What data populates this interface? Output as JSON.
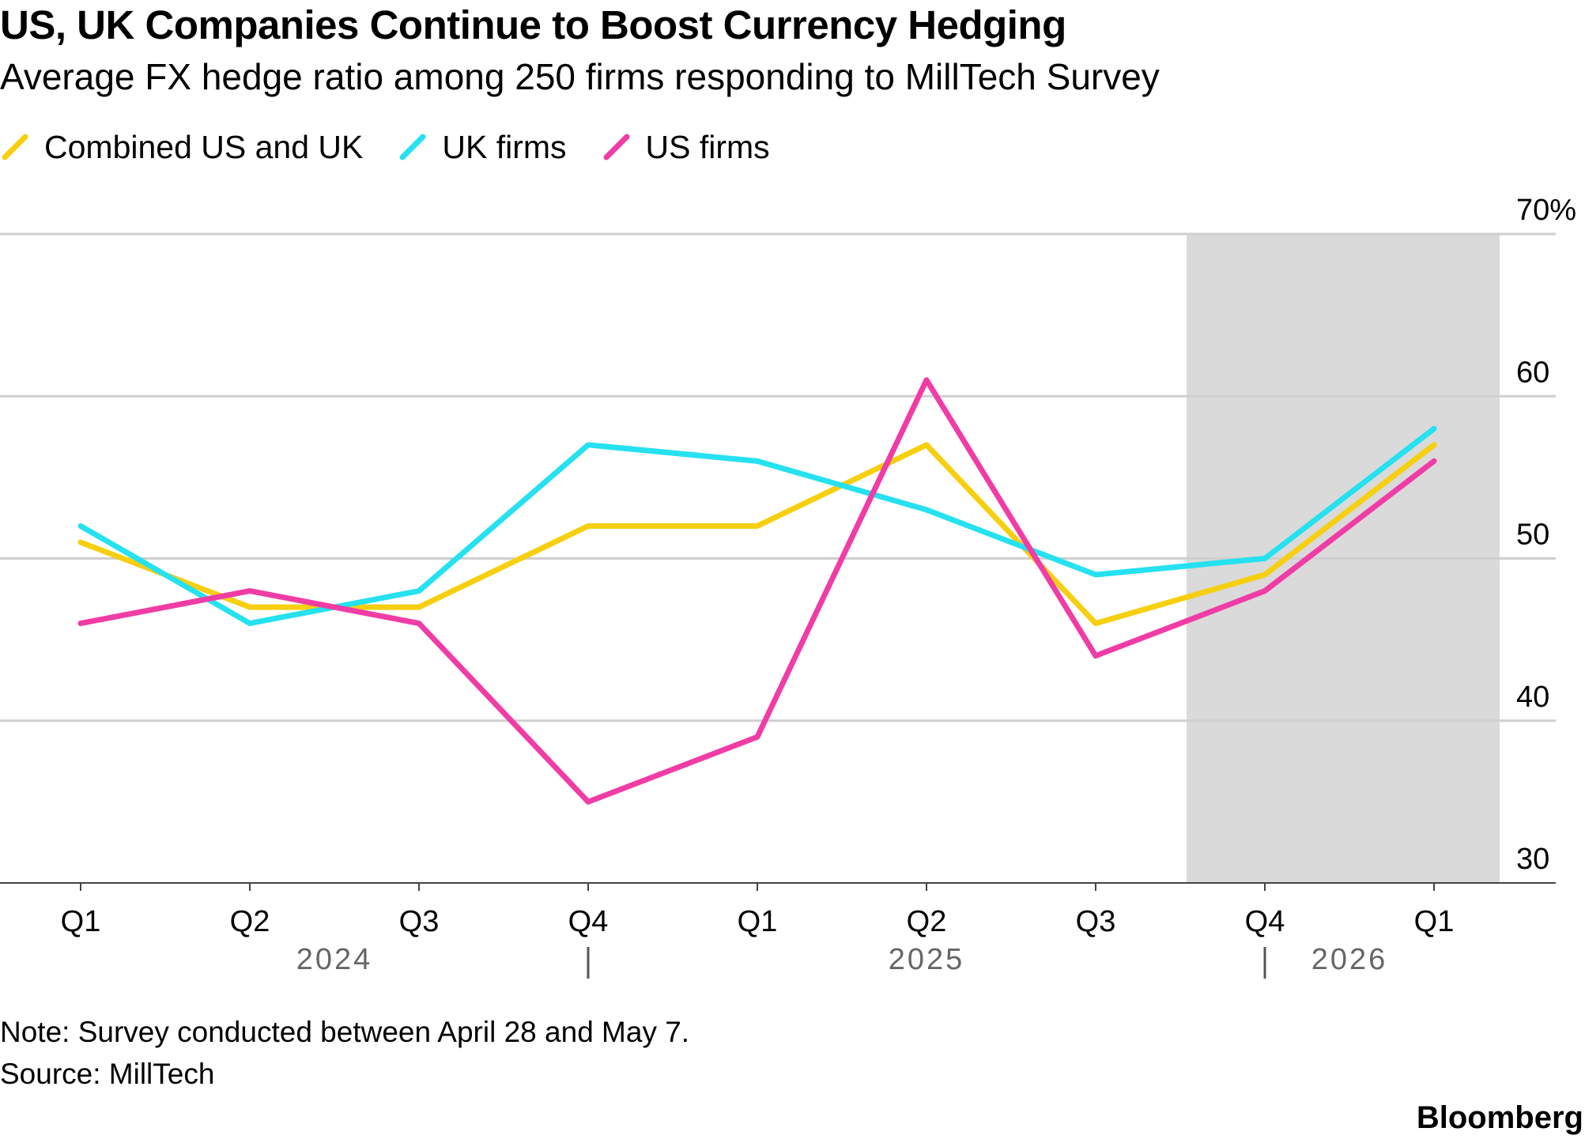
{
  "title": "US, UK Companies Continue to Boost Currency Hedging",
  "subtitle": "Average FX hedge ratio among 250 firms responding to MillTech Survey",
  "note": "Note: Survey conducted between April 28 and May 7.",
  "source": "Source: MillTech",
  "brand": "Bloomberg",
  "chart_data": {
    "type": "line",
    "categories": [
      "Q1",
      "Q2",
      "Q3",
      "Q4",
      "Q1",
      "Q2",
      "Q3",
      "Q4",
      "Q1"
    ],
    "year_labels": [
      {
        "label": "2024",
        "from_index": 0,
        "to_index": 3
      },
      {
        "label": "2025",
        "from_index": 3,
        "to_index": 7
      },
      {
        "label": "2026",
        "from_index": 7,
        "to_index": 8
      }
    ],
    "series": [
      {
        "name": "Combined US and UK",
        "color": "#f6cf0f",
        "values": [
          51,
          47,
          47,
          52,
          52,
          57,
          46,
          49,
          57
        ]
      },
      {
        "name": "UK firms",
        "color": "#26e1f0",
        "values": [
          52,
          46,
          48,
          57,
          56,
          53,
          49,
          50,
          58
        ]
      },
      {
        "name": "US firms",
        "color": "#f03ca5",
        "values": [
          46,
          48,
          46,
          35,
          39,
          61,
          44,
          48,
          56
        ]
      }
    ],
    "ylim": [
      30,
      70
    ],
    "yticks": [
      30,
      40,
      50,
      60,
      70
    ],
    "ytick_labels": [
      "30",
      "40",
      "50",
      "60",
      "70%"
    ],
    "y_axis_position": "right",
    "grid": true,
    "shaded_region": {
      "from_index": 7,
      "to_index": 8,
      "color": "#dadada"
    },
    "legend_position": "top-left"
  }
}
